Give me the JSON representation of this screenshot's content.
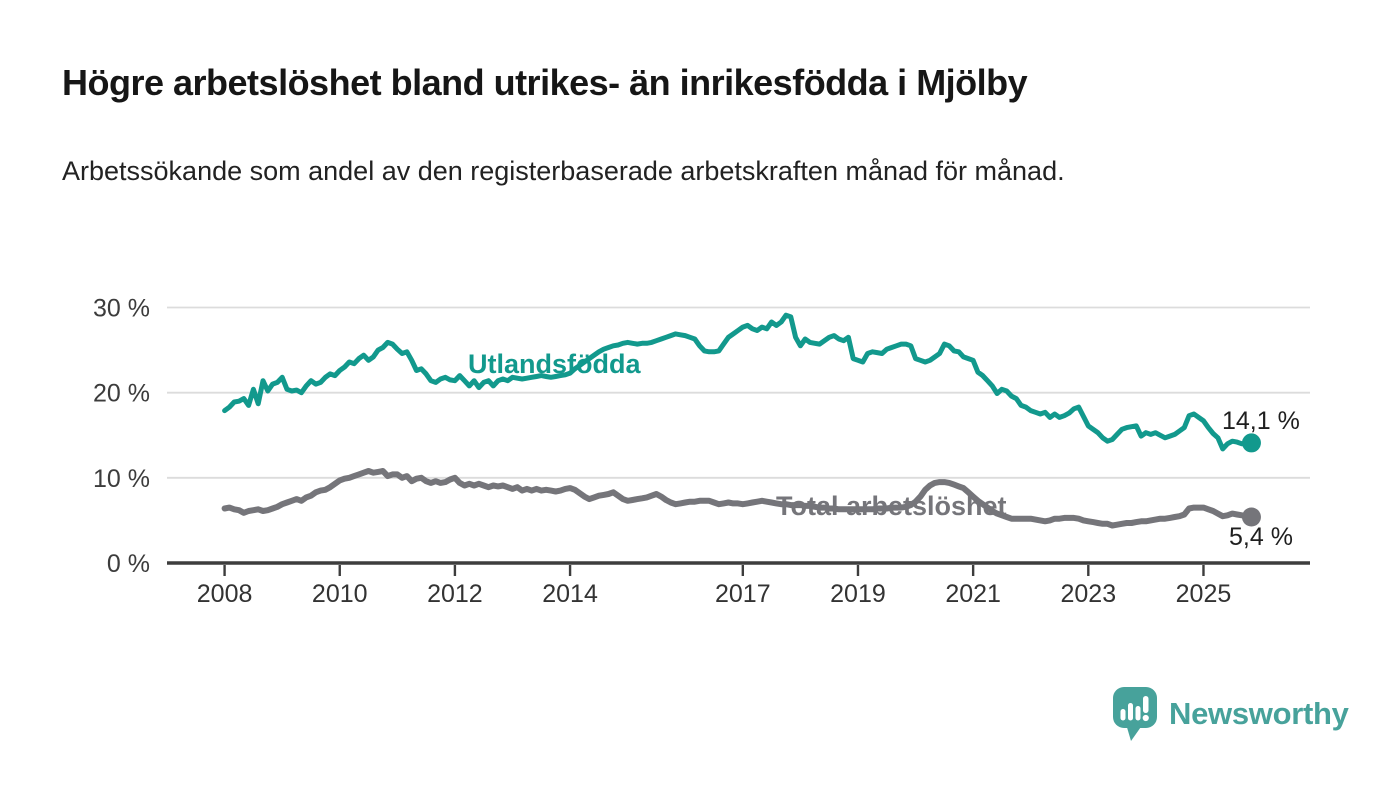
{
  "header": {
    "title": "Högre arbetslöshet bland utrikes- än inrikesfödda i Mjölby",
    "subtitle": "Arbetssökande som andel av den registerbaserade arbetskraften månad för månad."
  },
  "branding": {
    "name": "Newsworthy",
    "icon": "bar-chart-speech-bubble-icon",
    "color": "#47a29b"
  },
  "chart_data": {
    "type": "line",
    "title": "Högre arbetslöshet bland utrikes- än inrikesfödda i Mjölby",
    "unit": "%",
    "frequency": "monthly",
    "grid": true,
    "x_axis": {
      "ticks": [
        2008,
        2010,
        2012,
        2014,
        2017,
        2019,
        2021,
        2023,
        2025
      ],
      "tick_labels": [
        "2008",
        "2010",
        "2012",
        "2014",
        "2017",
        "2019",
        "2021",
        "2023",
        "2025"
      ]
    },
    "y_axis": {
      "ylim": [
        0,
        30
      ],
      "ticks": [
        {
          "value": 0,
          "label": "0 %"
        },
        {
          "value": 10,
          "label": "10 %"
        },
        {
          "value": 20,
          "label": "20 %"
        },
        {
          "value": 30,
          "label": "30 %"
        }
      ]
    },
    "series": [
      {
        "id": "utlandsfodda",
        "name": "Utlandsfödda",
        "color": "#12998d",
        "start_year": 2008,
        "end_label": "14,1 %",
        "end_value": 14.1,
        "values": [
          17.9,
          18.3,
          18.9,
          19.0,
          19.3,
          18.5,
          20.4,
          18.7,
          21.4,
          20.2,
          21.0,
          21.2,
          21.8,
          20.4,
          20.2,
          20.3,
          20.0,
          20.8,
          21.4,
          21.0,
          21.2,
          21.8,
          22.2,
          22.0,
          22.6,
          23.0,
          23.6,
          23.4,
          24.0,
          24.4,
          23.8,
          24.2,
          25.0,
          25.3,
          25.9,
          25.7,
          25.1,
          24.6,
          24.8,
          23.8,
          22.6,
          22.8,
          22.2,
          21.4,
          21.2,
          21.6,
          21.8,
          21.5,
          21.4,
          22.0,
          21.4,
          20.8,
          21.4,
          20.6,
          21.2,
          21.4,
          20.8,
          21.4,
          21.6,
          21.4,
          21.8,
          21.7,
          21.6,
          21.7,
          21.8,
          21.9,
          22.0,
          21.9,
          21.8,
          21.9,
          22.0,
          22.1,
          22.3,
          22.8,
          23.2,
          23.6,
          24.0,
          24.4,
          24.8,
          25.1,
          25.3,
          25.5,
          25.6,
          25.8,
          25.9,
          25.8,
          25.7,
          25.8,
          25.8,
          25.9,
          26.1,
          26.3,
          26.5,
          26.7,
          26.9,
          26.8,
          26.7,
          26.5,
          26.3,
          25.5,
          24.9,
          24.8,
          24.8,
          24.9,
          25.7,
          26.5,
          26.9,
          27.3,
          27.7,
          27.9,
          27.5,
          27.3,
          27.7,
          27.5,
          28.3,
          27.9,
          28.3,
          29.1,
          28.9,
          26.5,
          25.5,
          26.3,
          25.9,
          25.8,
          25.7,
          26.1,
          26.5,
          26.7,
          26.3,
          26.1,
          26.5,
          24.0,
          23.8,
          23.6,
          24.6,
          24.8,
          24.7,
          24.6,
          25.1,
          25.3,
          25.5,
          25.7,
          25.7,
          25.5,
          24.0,
          23.8,
          23.6,
          23.8,
          24.2,
          24.6,
          25.7,
          25.5,
          24.9,
          24.8,
          24.2,
          24.0,
          23.8,
          22.4,
          22.0,
          21.4,
          20.8,
          19.9,
          20.4,
          20.2,
          19.6,
          19.3,
          18.5,
          18.3,
          17.9,
          17.7,
          17.5,
          17.7,
          17.1,
          17.5,
          17.1,
          17.3,
          17.6,
          18.1,
          18.3,
          17.2,
          16.1,
          15.7,
          15.3,
          14.7,
          14.3,
          14.5,
          15.1,
          15.7,
          15.9,
          16.0,
          16.1,
          14.9,
          15.3,
          15.1,
          15.3,
          15.0,
          14.7,
          14.9,
          15.1,
          15.5,
          15.9,
          17.3,
          17.5,
          17.1,
          16.7,
          15.9,
          15.2,
          14.7,
          13.4,
          14.0,
          14.3,
          14.2,
          14.0,
          14.1,
          14.1
        ]
      },
      {
        "id": "total",
        "name": "Total arbetslöshet",
        "color": "#75757a",
        "start_year": 2008,
        "end_label": "5,4 %",
        "end_value": 5.4,
        "values": [
          6.4,
          6.5,
          6.3,
          6.2,
          5.9,
          6.1,
          6.2,
          6.3,
          6.1,
          6.2,
          6.4,
          6.6,
          6.9,
          7.1,
          7.3,
          7.5,
          7.3,
          7.7,
          7.9,
          8.3,
          8.5,
          8.6,
          8.9,
          9.3,
          9.7,
          9.9,
          10.0,
          10.2,
          10.4,
          10.6,
          10.8,
          10.6,
          10.7,
          10.8,
          10.2,
          10.4,
          10.4,
          10.0,
          10.2,
          9.6,
          9.9,
          10.0,
          9.6,
          9.4,
          9.6,
          9.4,
          9.5,
          9.8,
          10.0,
          9.4,
          9.1,
          9.3,
          9.1,
          9.3,
          9.1,
          8.9,
          9.1,
          9.0,
          9.1,
          8.9,
          8.7,
          8.9,
          8.5,
          8.7,
          8.5,
          8.7,
          8.5,
          8.6,
          8.5,
          8.4,
          8.5,
          8.7,
          8.8,
          8.6,
          8.2,
          7.8,
          7.5,
          7.7,
          7.9,
          8.0,
          8.1,
          8.3,
          7.9,
          7.5,
          7.3,
          7.4,
          7.5,
          7.6,
          7.7,
          7.9,
          8.1,
          7.8,
          7.4,
          7.1,
          6.9,
          7.0,
          7.1,
          7.2,
          7.2,
          7.3,
          7.3,
          7.3,
          7.1,
          6.9,
          7.0,
          7.1,
          7.0,
          7.0,
          6.9,
          7.0,
          7.1,
          7.2,
          7.3,
          7.2,
          7.1,
          7.0,
          6.9,
          6.9,
          6.8,
          6.8,
          6.8,
          6.7,
          6.7,
          6.6,
          6.5,
          6.5,
          6.4,
          6.4,
          6.3,
          6.3,
          6.3,
          6.3,
          6.3,
          6.3,
          6.3,
          6.3,
          6.4,
          6.4,
          6.4,
          6.5,
          6.5,
          6.5,
          6.6,
          6.8,
          7.2,
          7.8,
          8.6,
          9.1,
          9.4,
          9.5,
          9.5,
          9.4,
          9.2,
          9.0,
          8.8,
          8.3,
          7.8,
          7.3,
          6.9,
          6.5,
          6.1,
          5.8,
          5.6,
          5.4,
          5.2,
          5.2,
          5.2,
          5.2,
          5.2,
          5.1,
          5.0,
          4.9,
          5.0,
          5.2,
          5.2,
          5.3,
          5.3,
          5.3,
          5.2,
          5.0,
          4.9,
          4.8,
          4.7,
          4.6,
          4.6,
          4.4,
          4.5,
          4.6,
          4.7,
          4.7,
          4.8,
          4.9,
          4.9,
          5.0,
          5.1,
          5.2,
          5.2,
          5.3,
          5.4,
          5.5,
          5.7,
          6.4,
          6.5,
          6.5,
          6.5,
          6.3,
          6.1,
          5.8,
          5.5,
          5.6,
          5.8,
          5.7,
          5.6,
          5.5,
          5.4
        ]
      }
    ]
  }
}
